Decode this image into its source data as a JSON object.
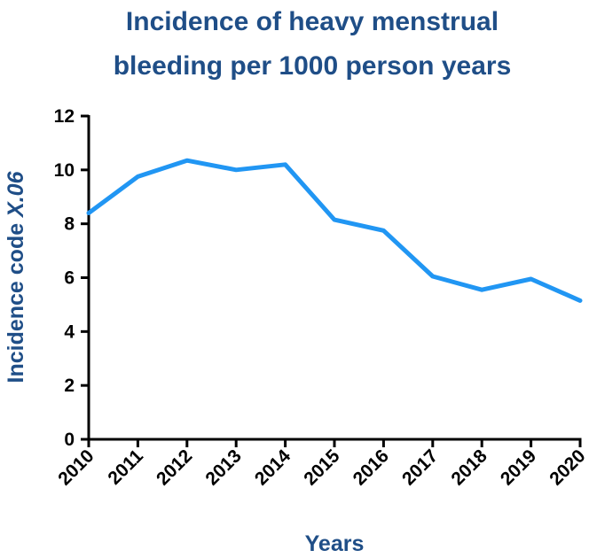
{
  "chart_data": {
    "type": "line",
    "title_lines": [
      "Incidence of heavy menstrual",
      "bleeding per 1000 person years"
    ],
    "xlabel": "Years",
    "ylabel_prefix": "Incidence code ",
    "ylabel_code": "X.06",
    "x": [
      "2010",
      "2011",
      "2012",
      "2013",
      "2014",
      "2015",
      "2016",
      "2017",
      "2018",
      "2019",
      "2020"
    ],
    "series": [
      {
        "name": "Incidence",
        "values": [
          8.4,
          9.75,
          10.35,
          10.0,
          10.2,
          8.15,
          7.75,
          6.05,
          5.55,
          5.95,
          5.15
        ]
      }
    ],
    "yticks": [
      0,
      2,
      4,
      6,
      8,
      10,
      12
    ],
    "ylim": [
      0,
      12
    ],
    "line_color": "#2196f3",
    "title_color": "#1f4e87"
  }
}
